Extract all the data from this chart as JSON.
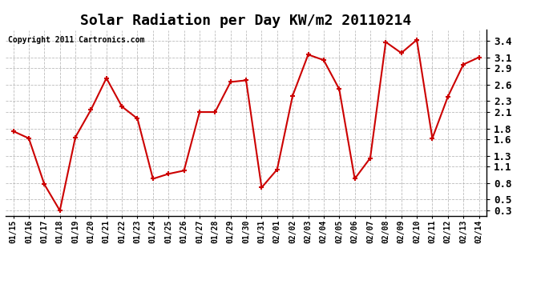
{
  "title": "Solar Radiation per Day KW/m2 20110214",
  "copyright_text": "Copyright 2011 Cartronics.com",
  "labels": [
    "01/15",
    "01/16",
    "01/17",
    "01/18",
    "01/19",
    "01/20",
    "01/21",
    "01/22",
    "01/23",
    "01/24",
    "01/25",
    "01/26",
    "01/27",
    "01/28",
    "01/29",
    "01/30",
    "01/31",
    "02/01",
    "02/02",
    "02/03",
    "02/04",
    "02/05",
    "02/06",
    "02/07",
    "02/08",
    "02/09",
    "02/10",
    "02/11",
    "02/12",
    "02/13",
    "02/14"
  ],
  "values": [
    1.75,
    1.62,
    0.78,
    0.3,
    1.64,
    2.14,
    2.72,
    2.2,
    1.98,
    0.88,
    0.97,
    1.03,
    2.1,
    2.1,
    2.65,
    2.68,
    0.72,
    1.05,
    2.4,
    3.15,
    3.05,
    2.52,
    0.88,
    1.26,
    3.38,
    3.18,
    3.42,
    1.62,
    2.38,
    2.97,
    3.1
  ],
  "ylim": [
    0.2,
    3.6
  ],
  "yticks": [
    0.3,
    0.5,
    0.8,
    1.1,
    1.3,
    1.6,
    1.8,
    2.1,
    2.3,
    2.6,
    2.9,
    3.1,
    3.4
  ],
  "line_color": "#cc0000",
  "marker_color": "#cc0000",
  "bg_color": "#ffffff",
  "grid_color": "#aaaaaa",
  "title_fontsize": 13,
  "ytick_fontsize": 9,
  "xtick_fontsize": 7,
  "copyright_fontsize": 7
}
